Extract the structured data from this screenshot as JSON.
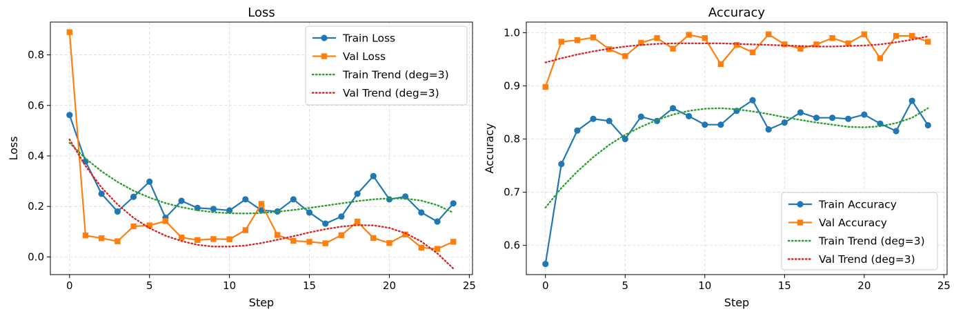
{
  "chart_data": [
    {
      "type": "line",
      "title": "Loss",
      "xlabel": "Step",
      "ylabel": "Loss",
      "xlim": [
        -1.2,
        25.2
      ],
      "ylim": [
        -0.07,
        0.93
      ],
      "xticks": [
        0,
        5,
        10,
        15,
        20,
        25
      ],
      "yticks": [
        0.0,
        0.2,
        0.4,
        0.6,
        0.8
      ],
      "ytick_decimals": 1,
      "grid": true,
      "legend_position": "top-right",
      "x": [
        0,
        1,
        2,
        3,
        4,
        5,
        6,
        7,
        8,
        9,
        10,
        11,
        12,
        13,
        14,
        15,
        16,
        17,
        18,
        19,
        20,
        21,
        22,
        23,
        24
      ],
      "series": [
        {
          "name": "Train Loss",
          "style": "line-marker",
          "marker": "circle",
          "color": "#1f77b4",
          "values": [
            0.562,
            0.378,
            0.25,
            0.18,
            0.238,
            0.298,
            0.155,
            0.222,
            0.194,
            0.19,
            0.184,
            0.228,
            0.185,
            0.18,
            0.228,
            0.176,
            0.132,
            0.16,
            0.25,
            0.32,
            0.228,
            0.239,
            0.176,
            0.14,
            0.212
          ]
        },
        {
          "name": "Val Loss",
          "style": "line-marker",
          "marker": "square",
          "color": "#ff7f0e",
          "values": [
            0.89,
            0.085,
            0.074,
            0.062,
            0.121,
            0.125,
            0.142,
            0.077,
            0.067,
            0.071,
            0.07,
            0.106,
            0.21,
            0.087,
            0.064,
            0.06,
            0.054,
            0.086,
            0.14,
            0.075,
            0.055,
            0.089,
            0.037,
            0.032,
            0.06
          ]
        },
        {
          "name": "Train Trend (deg=3)",
          "style": "dotted",
          "color": "#2ca02c",
          "values": [
            0.452,
            0.39,
            0.339,
            0.297,
            0.262,
            0.235,
            0.213,
            0.197,
            0.185,
            0.177,
            0.173,
            0.172,
            0.174,
            0.179,
            0.186,
            0.194,
            0.203,
            0.212,
            0.221,
            0.228,
            0.232,
            0.231,
            0.223,
            0.205,
            0.175
          ]
        },
        {
          "name": "Val Trend (deg=3)",
          "style": "dotted",
          "color": "#d62728",
          "values": [
            0.465,
            0.36,
            0.275,
            0.208,
            0.155,
            0.114,
            0.084,
            0.063,
            0.048,
            0.041,
            0.041,
            0.045,
            0.055,
            0.068,
            0.082,
            0.097,
            0.11,
            0.12,
            0.126,
            0.125,
            0.115,
            0.094,
            0.061,
            0.014,
            -0.046
          ]
        }
      ]
    },
    {
      "type": "line",
      "title": "Accuracy",
      "xlabel": "Step",
      "ylabel": "Accuracy",
      "xlim": [
        -1.2,
        25.2
      ],
      "ylim": [
        0.545,
        1.02
      ],
      "xticks": [
        0,
        5,
        10,
        15,
        20,
        25
      ],
      "yticks": [
        0.6,
        0.7,
        0.8,
        0.9,
        1.0
      ],
      "ytick_decimals": 1,
      "grid": true,
      "legend_position": "bottom-right",
      "x": [
        0,
        1,
        2,
        3,
        4,
        5,
        6,
        7,
        8,
        9,
        10,
        11,
        12,
        13,
        14,
        15,
        16,
        17,
        18,
        19,
        20,
        21,
        22,
        23,
        24
      ],
      "series": [
        {
          "name": "Train Accuracy",
          "style": "line-marker",
          "marker": "circle",
          "color": "#1f77b4",
          "values": [
            0.565,
            0.753,
            0.816,
            0.838,
            0.834,
            0.8,
            0.842,
            0.834,
            0.858,
            0.843,
            0.827,
            0.827,
            0.853,
            0.873,
            0.818,
            0.831,
            0.85,
            0.84,
            0.84,
            0.838,
            0.846,
            0.829,
            0.815,
            0.872,
            0.826
          ]
        },
        {
          "name": "Val Accuracy",
          "style": "line-marker",
          "marker": "square",
          "color": "#ff7f0e",
          "values": [
            0.898,
            0.983,
            0.986,
            0.991,
            0.969,
            0.956,
            0.981,
            0.99,
            0.97,
            0.996,
            0.99,
            0.941,
            0.977,
            0.963,
            0.997,
            0.978,
            0.97,
            0.978,
            0.99,
            0.98,
            0.997,
            0.952,
            0.994,
            0.994,
            0.983
          ]
        },
        {
          "name": "Train Trend (deg=3)",
          "style": "dotted",
          "color": "#2ca02c",
          "values": [
            0.671,
            0.708,
            0.739,
            0.766,
            0.789,
            0.808,
            0.823,
            0.836,
            0.846,
            0.853,
            0.857,
            0.858,
            0.856,
            0.852,
            0.847,
            0.841,
            0.836,
            0.831,
            0.827,
            0.823,
            0.822,
            0.824,
            0.83,
            0.84,
            0.858
          ]
        },
        {
          "name": "Val Trend (deg=3)",
          "style": "dotted",
          "color": "#d62728",
          "values": [
            0.944,
            0.952,
            0.959,
            0.965,
            0.97,
            0.974,
            0.977,
            0.979,
            0.98,
            0.98,
            0.98,
            0.98,
            0.979,
            0.978,
            0.977,
            0.976,
            0.975,
            0.974,
            0.974,
            0.975,
            0.976,
            0.978,
            0.982,
            0.987,
            0.993
          ]
        }
      ]
    }
  ]
}
